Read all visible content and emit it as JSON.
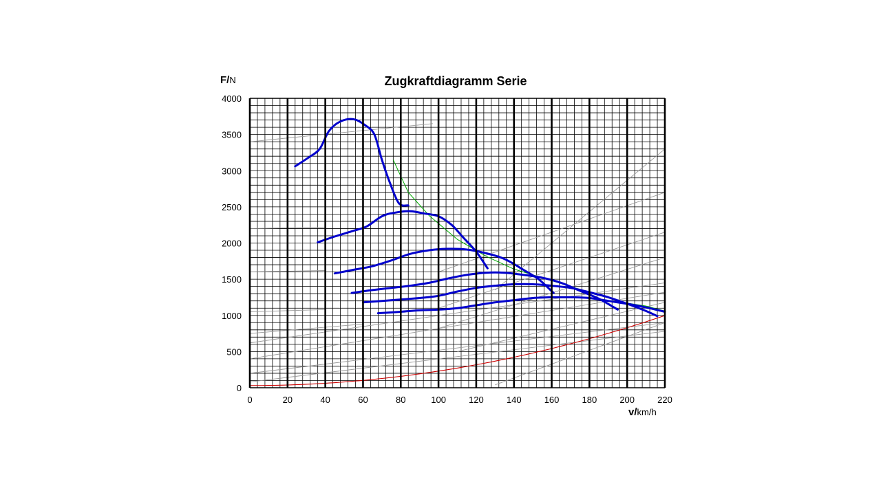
{
  "chart_data": {
    "type": "line",
    "title": "Zugkraftdiagramm Serie",
    "xlabel": {
      "bold": "v/",
      "unit": "km/h"
    },
    "ylabel": {
      "bold": "F/",
      "unit": "N"
    },
    "xlim": [
      0,
      220
    ],
    "ylim": [
      0,
      4000
    ],
    "x_ticks": [
      0,
      20,
      40,
      60,
      80,
      100,
      120,
      140,
      160,
      180,
      200,
      220
    ],
    "y_ticks": [
      0,
      500,
      1000,
      1500,
      2000,
      2500,
      3000,
      3500,
      4000
    ],
    "grid": true,
    "grid_minor_x": 4,
    "grid_minor_y": 100,
    "colors": {
      "gear_curves": "#0000cc",
      "envelope": "#00aa00",
      "resistance": "#cc0000",
      "grade_lines": "#999999",
      "grid": "#000000"
    },
    "series": [
      {
        "values": [
          [
            24,
            3060
          ],
          [
            31,
            3180
          ],
          [
            37,
            3300
          ],
          [
            42,
            3550
          ],
          [
            48,
            3680
          ],
          [
            55,
            3710
          ],
          [
            61,
            3630
          ],
          [
            66,
            3500
          ],
          [
            70,
            3150
          ],
          [
            74,
            2850
          ],
          [
            79,
            2550
          ],
          [
            84,
            2520
          ]
        ]
      },
      {
        "values": [
          [
            36,
            2010
          ],
          [
            45,
            2090
          ],
          [
            55,
            2170
          ],
          [
            62,
            2230
          ],
          [
            70,
            2370
          ],
          [
            77,
            2420
          ],
          [
            85,
            2440
          ],
          [
            92,
            2410
          ],
          [
            100,
            2370
          ],
          [
            107,
            2250
          ],
          [
            113,
            2080
          ],
          [
            120,
            1880
          ],
          [
            126,
            1650
          ]
        ]
      },
      {
        "values": [
          [
            45,
            1580
          ],
          [
            55,
            1630
          ],
          [
            65,
            1680
          ],
          [
            75,
            1760
          ],
          [
            85,
            1850
          ],
          [
            95,
            1900
          ],
          [
            105,
            1920
          ],
          [
            115,
            1910
          ],
          [
            125,
            1860
          ],
          [
            135,
            1780
          ],
          [
            145,
            1630
          ],
          [
            153,
            1500
          ],
          [
            161,
            1310
          ]
        ]
      },
      {
        "values": [
          [
            54,
            1310
          ],
          [
            65,
            1350
          ],
          [
            75,
            1380
          ],
          [
            85,
            1410
          ],
          [
            95,
            1450
          ],
          [
            105,
            1510
          ],
          [
            115,
            1560
          ],
          [
            125,
            1590
          ],
          [
            135,
            1590
          ],
          [
            145,
            1560
          ],
          [
            155,
            1520
          ],
          [
            165,
            1450
          ],
          [
            175,
            1340
          ],
          [
            185,
            1230
          ],
          [
            195,
            1080
          ]
        ]
      },
      {
        "values": [
          [
            60,
            1180
          ],
          [
            70,
            1200
          ],
          [
            80,
            1220
          ],
          [
            90,
            1240
          ],
          [
            100,
            1270
          ],
          [
            110,
            1330
          ],
          [
            120,
            1380
          ],
          [
            130,
            1410
          ],
          [
            140,
            1430
          ],
          [
            150,
            1430
          ],
          [
            160,
            1410
          ],
          [
            170,
            1380
          ],
          [
            180,
            1320
          ],
          [
            190,
            1250
          ],
          [
            200,
            1160
          ],
          [
            210,
            1060
          ],
          [
            216,
            990
          ]
        ]
      },
      {
        "values": [
          [
            68,
            1030
          ],
          [
            80,
            1050
          ],
          [
            90,
            1070
          ],
          [
            100,
            1080
          ],
          [
            110,
            1100
          ],
          [
            120,
            1140
          ],
          [
            130,
            1180
          ],
          [
            140,
            1210
          ],
          [
            150,
            1240
          ],
          [
            160,
            1250
          ],
          [
            170,
            1250
          ],
          [
            180,
            1240
          ],
          [
            190,
            1200
          ],
          [
            200,
            1160
          ],
          [
            210,
            1110
          ],
          [
            220,
            1050
          ]
        ]
      }
    ],
    "envelope": [
      [
        76,
        3150
      ],
      [
        84,
        2700
      ],
      [
        95,
        2380
      ],
      [
        110,
        2050
      ],
      [
        125,
        1820
      ],
      [
        140,
        1640
      ],
      [
        155,
        1520
      ],
      [
        170,
        1400
      ],
      [
        185,
        1280
      ],
      [
        200,
        1170
      ],
      [
        210,
        1130
      ],
      [
        220,
        1060
      ]
    ],
    "resistance_curve": {
      "f0": 30,
      "k": 0.02
    },
    "grade_lines": [
      [
        [
          0,
          3400
        ],
        [
          97,
          3650
        ]
      ],
      [
        [
          0,
          2200
        ],
        [
          40,
          2220
        ]
      ],
      [
        [
          0,
          1600
        ],
        [
          40,
          1620
        ]
      ],
      [
        [
          0,
          1050
        ],
        [
          40,
          1080
        ]
      ],
      [
        [
          0,
          750
        ],
        [
          60,
          880
        ]
      ],
      [
        [
          0,
          620
        ],
        [
          220,
          1450
        ]
      ],
      [
        [
          0,
          400
        ],
        [
          220,
          1320
        ]
      ],
      [
        [
          0,
          200
        ],
        [
          220,
          900
        ]
      ],
      [
        [
          0,
          80
        ],
        [
          220,
          780
        ]
      ],
      [
        [
          100,
          1600
        ],
        [
          220,
          2700
        ]
      ],
      [
        [
          100,
          1100
        ],
        [
          220,
          2150
        ]
      ],
      [
        [
          100,
          820
        ],
        [
          220,
          1800
        ]
      ],
      [
        [
          130,
          1350
        ],
        [
          220,
          3300
        ]
      ],
      [
        [
          110,
          500
        ],
        [
          220,
          1180
        ]
      ],
      [
        [
          130,
          40
        ],
        [
          220,
          900
        ]
      ]
    ]
  }
}
